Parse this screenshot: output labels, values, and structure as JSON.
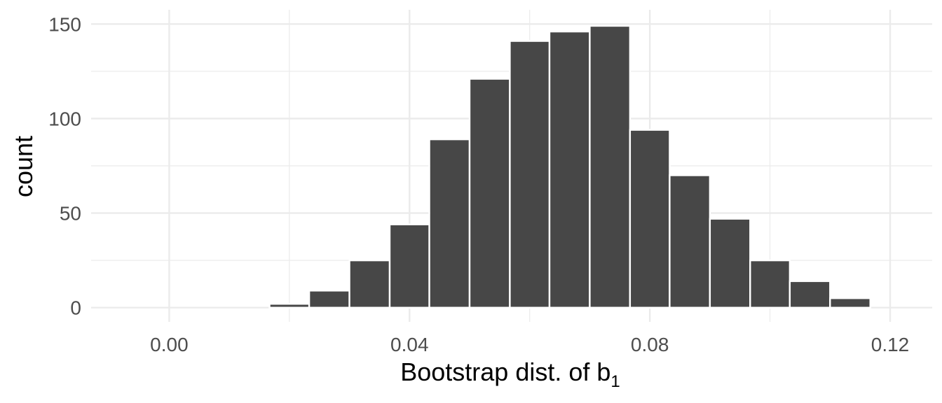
{
  "chart_data": {
    "type": "bar",
    "xlabel": "Bootstrap dist. of b",
    "xlabel_subscript": "1",
    "ylabel": "count",
    "xlim": [
      -0.013,
      0.127
    ],
    "ylim": [
      -7.5,
      157.5
    ],
    "x_ticks": [
      0.0,
      0.04,
      0.08,
      0.12
    ],
    "x_tick_labels": [
      "0.00",
      "0.04",
      "0.08",
      "0.12"
    ],
    "y_ticks": [
      0,
      50,
      100,
      150
    ],
    "y_tick_labels": [
      "0",
      "50",
      "100",
      "150"
    ],
    "grid": true,
    "bin_width": 0.00667,
    "bins": [
      {
        "x0": -0.01,
        "x1": -0.0033,
        "count": 0
      },
      {
        "x0": -0.0033,
        "x1": 0.0033,
        "count": 0
      },
      {
        "x0": 0.0033,
        "x1": 0.01,
        "count": 0
      },
      {
        "x0": 0.01,
        "x1": 0.0167,
        "count": 0
      },
      {
        "x0": 0.0167,
        "x1": 0.0233,
        "count": 2
      },
      {
        "x0": 0.0233,
        "x1": 0.03,
        "count": 9
      },
      {
        "x0": 0.03,
        "x1": 0.0367,
        "count": 25
      },
      {
        "x0": 0.0367,
        "x1": 0.0433,
        "count": 44
      },
      {
        "x0": 0.0433,
        "x1": 0.05,
        "count": 89
      },
      {
        "x0": 0.05,
        "x1": 0.0567,
        "count": 121
      },
      {
        "x0": 0.0567,
        "x1": 0.0633,
        "count": 141
      },
      {
        "x0": 0.0633,
        "x1": 0.07,
        "count": 146
      },
      {
        "x0": 0.07,
        "x1": 0.0767,
        "count": 149
      },
      {
        "x0": 0.0767,
        "x1": 0.0833,
        "count": 94
      },
      {
        "x0": 0.0833,
        "x1": 0.09,
        "count": 70
      },
      {
        "x0": 0.09,
        "x1": 0.0967,
        "count": 47
      },
      {
        "x0": 0.0967,
        "x1": 0.1033,
        "count": 25
      },
      {
        "x0": 0.1033,
        "x1": 0.11,
        "count": 14
      },
      {
        "x0": 0.11,
        "x1": 0.1167,
        "count": 5
      },
      {
        "x0": 0.1167,
        "x1": 0.1233,
        "count": 0
      }
    ]
  }
}
